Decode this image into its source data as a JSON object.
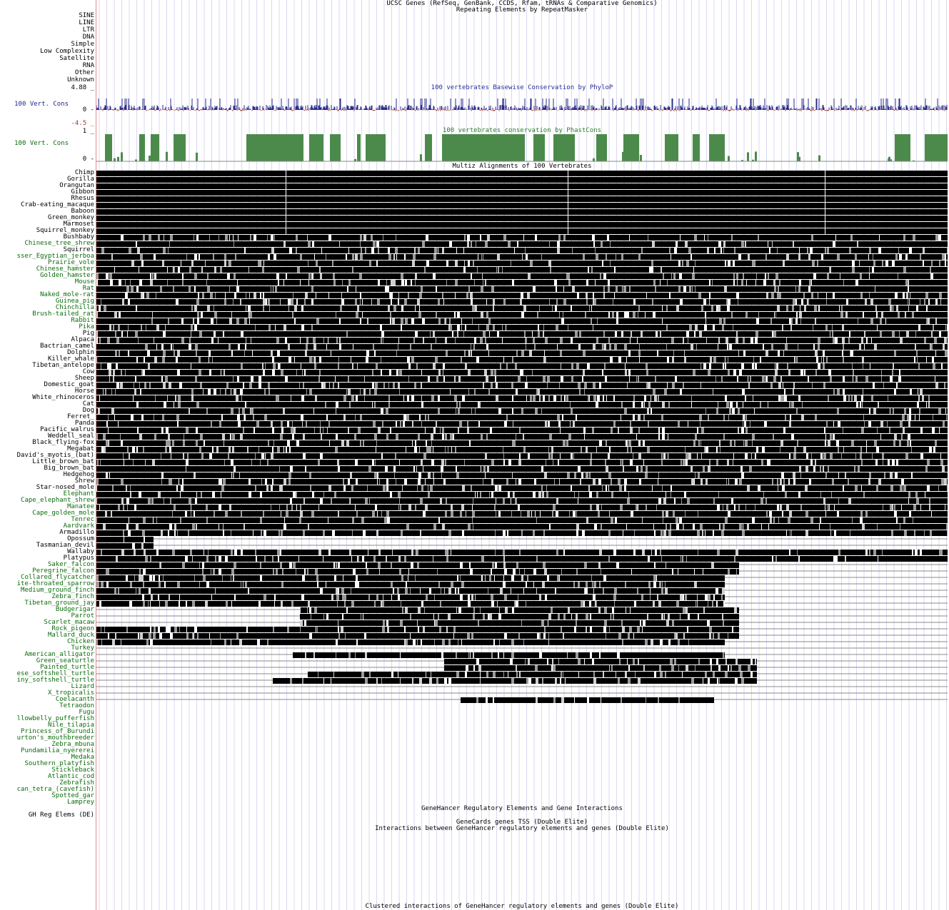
{
  "tracks": {
    "ucsc_genes_title": "UCSC Genes (RefSeq, GenBank, CCDS, Rfam, tRNAs & Comparative Genomics)",
    "rmsk_title": "Repeating Elements by RepeatMasker",
    "phylop_title": "100 vertebrates Basewise Conservation by PhyloP",
    "phastcons_title": "100 vertebrates conservation by PhastCons",
    "multiz_title": "Multiz Alignments of 100 Vertebrates",
    "genehancer_title": "GeneHancer Regulatory Elements and Gene Interactions",
    "genecards_title": "GeneCards genes TSS (Double Elite)",
    "interactions_title": "Interactions between GeneHancer regulatory elements and genes (Double Elite)",
    "clustered_title": "Clustered interactions of GeneHancer regulatory elements and genes (Double Elite)"
  },
  "repeat_classes": [
    "SINE",
    "LINE",
    "LTR",
    "DNA",
    "Simple",
    "Low Complexity",
    "Satellite",
    "RNA",
    "Other",
    "Unknown"
  ],
  "phylop": {
    "label": "100 Vert. Cons",
    "max": "4.88 _",
    "zero": "0 -",
    "min": "-4.5 _"
  },
  "phastcons": {
    "label": "100 Vert. Cons",
    "max": "1 _",
    "zero": "0 -"
  },
  "species": [
    "Chimp",
    "Gorilla",
    "Orangutan",
    "Gibbon",
    "Rhesus",
    "Crab-eating_macaque",
    "Baboon",
    "Green_monkey",
    "Marmoset",
    "Squirrel_monkey",
    "Bushbaby",
    "Chinese_tree_shrew",
    "Squirrel",
    "sser_Egyptian_jerboa",
    "Prairie_vole",
    "Chinese_hamster",
    "Golden_hamster",
    "Mouse",
    "Rat",
    "Naked_mole-rat",
    "Guinea_pig",
    "Chinchilla",
    "Brush-tailed_rat",
    "Rabbit",
    "Pika",
    "Pig",
    "Alpaca",
    "Bactrian_camel",
    "Dolphin",
    "Killer_whale",
    "Tibetan_antelope",
    "Cow",
    "Sheep",
    "Domestic_goat",
    "Horse",
    "White_rhinoceros",
    "Cat",
    "Dog",
    "Ferret_",
    "Panda",
    "Pacific_walrus",
    "Weddell_seal",
    "Black_flying-fox",
    "Megabat",
    "David's_myotis_(bat)",
    "Little_brown_bat",
    "Big_brown_bat",
    "Hedgehog",
    "Shrew",
    "Star-nosed_mole",
    "Elephant",
    "Cape_elephant_shrew",
    "Manatee",
    "Cape_golden_mole",
    "Tenrec",
    "Aardvark",
    "Armadillo",
    "Opossum",
    "Tasmanian_devil",
    "Wallaby",
    "Platypus",
    "Saker_falcon",
    "Peregrine_falcon",
    "Collared_flycatcher",
    "ite-throated_sparrow",
    "Medium_ground_finch",
    "Zebra_finch",
    "Tibetan_ground_jay",
    "Budgerigar",
    "Parrot",
    "Scarlet_macaw",
    "Rock_pigeon",
    "Mallard_duck",
    "Chicken",
    "Turkey",
    "American_alligator",
    "Green_seaturtle",
    "Painted_turtle",
    "ese_softshell_turtle",
    "iny_softshell_turtle",
    "Lizard",
    "X_tropicalis",
    "Coelacanth",
    "Tetraodon",
    "Fugu",
    "llowbelly_pufferfish",
    "Nile_tilapia",
    "Princess_of_Burundi",
    "urton's_mouthbreeder",
    "Zebra_mbuna",
    "Pundamilia_nyererei",
    "Medaka",
    "Southern_platyfish",
    "Stickleback",
    "Atlantic_cod",
    "Zebrafish",
    "can_tetra_(cavefish)",
    "Spotted_gar",
    "Lamprey"
  ],
  "genehancer_label": "GH Reg Elems (DE)",
  "colors": {
    "phylop_pos": "#2b2b8c",
    "phylop_neg": "#a43a3a",
    "phastcons": "#4c8a4c",
    "grid": "#d8d8f0"
  }
}
